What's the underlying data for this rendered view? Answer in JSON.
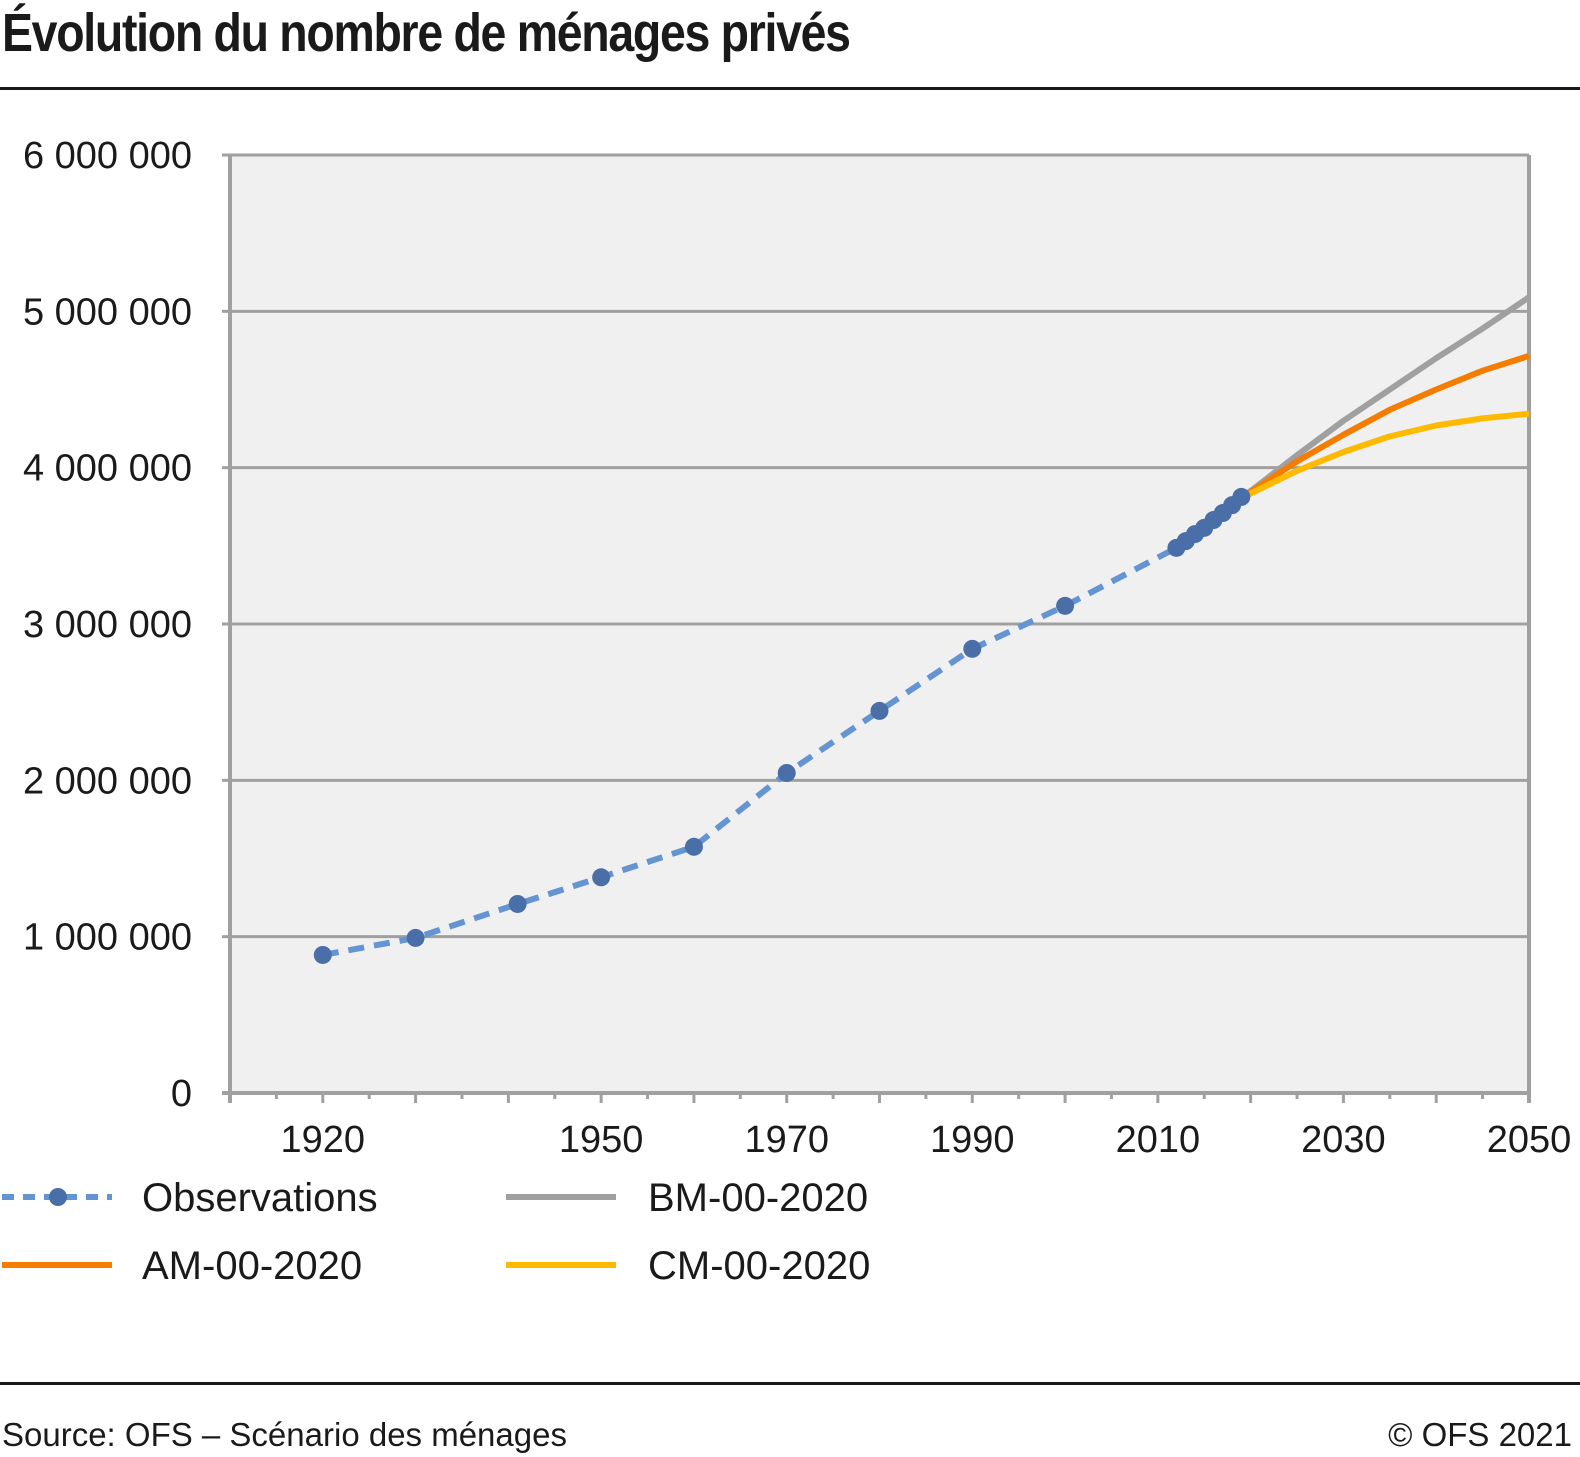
{
  "header": {
    "title": "Évolution du nombre de ménages privés"
  },
  "footer": {
    "source": "Source: OFS – Scénario des ménages",
    "copyright": "© OFS 2021"
  },
  "chart_data": {
    "type": "line",
    "title": "Évolution du nombre de ménages privés",
    "xlabel": "",
    "ylabel": "",
    "xlim": [
      1910,
      2050
    ],
    "ylim": [
      0,
      6000000
    ],
    "grid": true,
    "legend_position": "bottom",
    "x_tick_labels": [
      {
        "value": 1920,
        "label": "1920"
      },
      {
        "value": 1950,
        "label": "1950"
      },
      {
        "value": 1970,
        "label": "1970"
      },
      {
        "value": 1990,
        "label": "1990"
      },
      {
        "value": 2010,
        "label": "2010"
      },
      {
        "value": 2030,
        "label": "2030"
      },
      {
        "value": 2050,
        "label": "2050"
      }
    ],
    "y_tick_labels": [
      {
        "value": 0,
        "label": "0"
      },
      {
        "value": 1000000,
        "label": "1 000 000"
      },
      {
        "value": 2000000,
        "label": "2 000 000"
      },
      {
        "value": 3000000,
        "label": "3 000 000"
      },
      {
        "value": 4000000,
        "label": "4 000 000"
      },
      {
        "value": 5000000,
        "label": "5 000 000"
      },
      {
        "value": 6000000,
        "label": "6 000 000"
      }
    ],
    "series": [
      {
        "name": "Observations",
        "style": "dashed-markers",
        "color": "#6495d2",
        "marker_color": "#4a6ea8",
        "x": [
          1920,
          1930,
          1941,
          1950,
          1960,
          1970,
          1980,
          1990,
          2000,
          2012,
          2013,
          2014,
          2015,
          2016,
          2017,
          2018,
          2019
        ],
        "values": [
          883000,
          992000,
          1209000,
          1380000,
          1575000,
          2047000,
          2444000,
          2841000,
          3116000,
          3487000,
          3530000,
          3575000,
          3615000,
          3665000,
          3710000,
          3760000,
          3813000
        ]
      },
      {
        "name": "BM-00-2020",
        "style": "solid",
        "color": "#a0a0a0",
        "x": [
          2019,
          2020,
          2025,
          2030,
          2035,
          2040,
          2045,
          2050
        ],
        "values": [
          3813000,
          3850000,
          4080000,
          4300000,
          4500000,
          4700000,
          4890000,
          5090000
        ]
      },
      {
        "name": "AM-00-2020",
        "style": "solid",
        "color": "#f47d00",
        "x": [
          2019,
          2020,
          2025,
          2030,
          2035,
          2040,
          2045,
          2050
        ],
        "values": [
          3813000,
          3845000,
          4040000,
          4210000,
          4370000,
          4500000,
          4620000,
          4715000
        ]
      },
      {
        "name": "CM-00-2020",
        "style": "solid",
        "color": "#ffba00",
        "x": [
          2019,
          2020,
          2025,
          2030,
          2035,
          2040,
          2045,
          2050
        ],
        "values": [
          3813000,
          3835000,
          3980000,
          4100000,
          4200000,
          4270000,
          4315000,
          4345000
        ]
      }
    ]
  }
}
